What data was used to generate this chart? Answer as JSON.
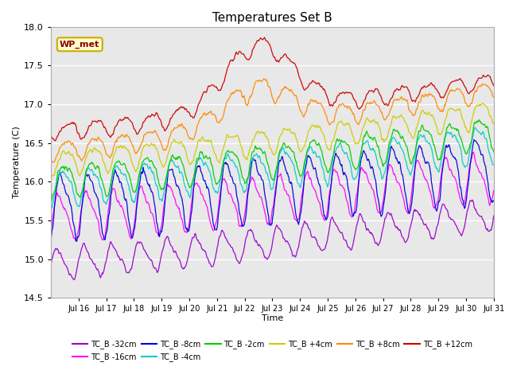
{
  "title": "Temperatures Set B",
  "xlabel": "Time",
  "ylabel": "Temperature (C)",
  "ylim": [
    14.5,
    18.0
  ],
  "yticks": [
    14.5,
    15.0,
    15.5,
    16.0,
    16.5,
    17.0,
    17.5,
    18.0
  ],
  "annotation": "WP_met",
  "n_points": 768,
  "series": [
    {
      "label": "TC_B -32cm",
      "color": "#9900cc",
      "base": 14.93,
      "amp": 0.18,
      "trend": 0.5,
      "phase": 0.0,
      "noise": 0.025,
      "peak_day": -1,
      "peak_amp": 0.0
    },
    {
      "label": "TC_B -16cm",
      "color": "#ff00ff",
      "base": 15.55,
      "amp": 0.28,
      "trend": 0.4,
      "phase": 0.5,
      "noise": 0.03,
      "peak_day": -1,
      "peak_amp": 0.0
    },
    {
      "label": "TC_B -8cm",
      "color": "#0000dd",
      "base": 15.7,
      "amp": 0.38,
      "trend": 0.38,
      "phase": 1.0,
      "noise": 0.04,
      "peak_day": -1,
      "peak_amp": 0.0
    },
    {
      "label": "TC_B -4cm",
      "color": "#00cccc",
      "base": 15.93,
      "amp": 0.22,
      "trend": 0.45,
      "phase": 1.3,
      "noise": 0.03,
      "peak_day": -1,
      "peak_amp": 0.0
    },
    {
      "label": "TC_B -2cm",
      "color": "#00cc00",
      "base": 16.02,
      "amp": 0.2,
      "trend": 0.48,
      "phase": 1.6,
      "noise": 0.03,
      "peak_day": -1,
      "peak_amp": 0.0
    },
    {
      "label": "TC_B +4cm",
      "color": "#cccc00",
      "base": 16.25,
      "amp": 0.15,
      "trend": 0.5,
      "phase": 1.9,
      "noise": 0.025,
      "peak_day": -1,
      "peak_amp": 0.0
    },
    {
      "label": "TC_B +8cm",
      "color": "#ff8800",
      "base": 16.4,
      "amp": 0.12,
      "trend": 0.6,
      "phase": 2.2,
      "noise": 0.025,
      "peak_day": 7.5,
      "peak_amp": 0.5
    },
    {
      "label": "TC_B +12cm",
      "color": "#cc0000",
      "base": 16.65,
      "amp": 0.1,
      "trend": 0.5,
      "phase": 2.5,
      "noise": 0.02,
      "peak_day": 7.5,
      "peak_amp": 0.85
    }
  ],
  "bg_color": "#e8e8e8",
  "xtick_labels": [
    "Jul 16",
    "Jul 17",
    "Jul 18",
    "Jul 19",
    "Jul 20",
    "Jul 21",
    "Jul 22",
    "Jul 23",
    "Jul 24",
    "Jul 25",
    "Jul 26",
    "Jul 27",
    "Jul 28",
    "Jul 29",
    "Jul 30",
    "Jul 31"
  ],
  "n_days": 16
}
